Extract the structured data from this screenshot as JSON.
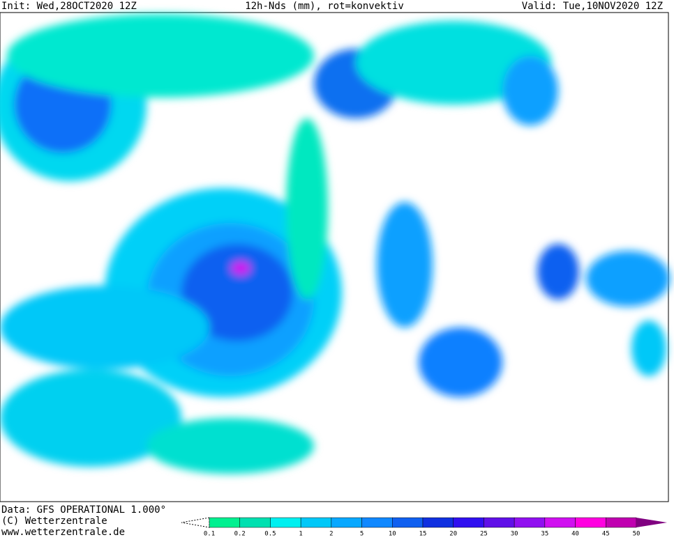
{
  "header": {
    "init": "Init: Wed,28OCT2020 12Z",
    "title": "12h-Nds (mm), rot=konvektiv",
    "valid": "Valid: Tue,10NOV2020 12Z"
  },
  "footer": {
    "data": "Data: GFS OPERATIONAL 1.000°",
    "copyright": "(C) Wetterzentrale",
    "url": "www.wetterzentrale.de"
  },
  "legend": {
    "labels": [
      "0.1",
      "0.2",
      "0.5",
      "1",
      "2",
      "5",
      "10",
      "15",
      "20",
      "25",
      "30",
      "35",
      "40",
      "45",
      "50"
    ],
    "colors": [
      "#00f090",
      "#00e0b0",
      "#00f0f0",
      "#00c8f8",
      "#08a8ff",
      "#1088ff",
      "#1060f0",
      "#1030e0",
      "#3010f0",
      "#6010e8",
      "#9010f0",
      "#d010f0",
      "#ff00e0",
      "#c000b0",
      "#800080"
    ]
  }
}
